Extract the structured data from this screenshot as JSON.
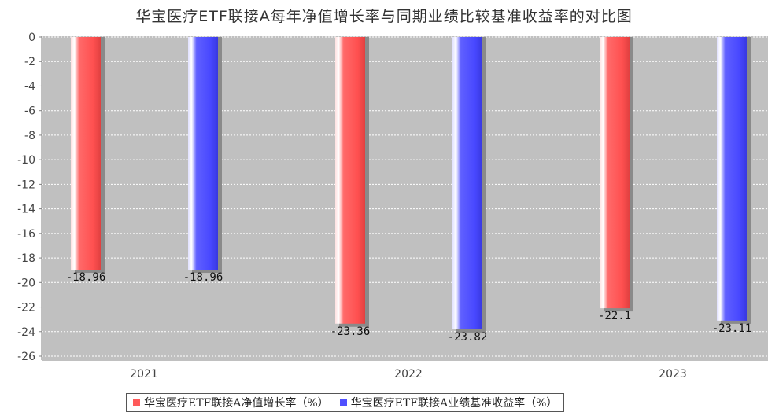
{
  "chart_data": {
    "type": "bar",
    "title": "华宝医疗ETF联接A每年净值增长率与同期业绩比较基准收益率的对比图",
    "categories": [
      "2021",
      "2022",
      "2023"
    ],
    "series": [
      {
        "name": "华宝医疗ETF联接A净值增长率（%）",
        "color": "#ff5a5a",
        "values": [
          -18.96,
          -23.36,
          -22.1
        ],
        "labels": [
          "-18.96",
          "-23.36",
          "-22.1"
        ]
      },
      {
        "name": "华宝医疗ETF联接A业绩基准收益率（%）",
        "color": "#5050ff",
        "values": [
          -18.96,
          -23.82,
          -23.11
        ],
        "labels": [
          "-18.96",
          "-23.82",
          "-23.11"
        ]
      }
    ],
    "ylim": [
      -26,
      0
    ],
    "yticks": [
      0,
      -2,
      -4,
      -6,
      -8,
      -10,
      -12,
      -14,
      -16,
      -18,
      -20,
      -22,
      -24,
      -26
    ],
    "grid": true,
    "legend_position": "bottom",
    "plot_background": "#c0c0c0"
  }
}
